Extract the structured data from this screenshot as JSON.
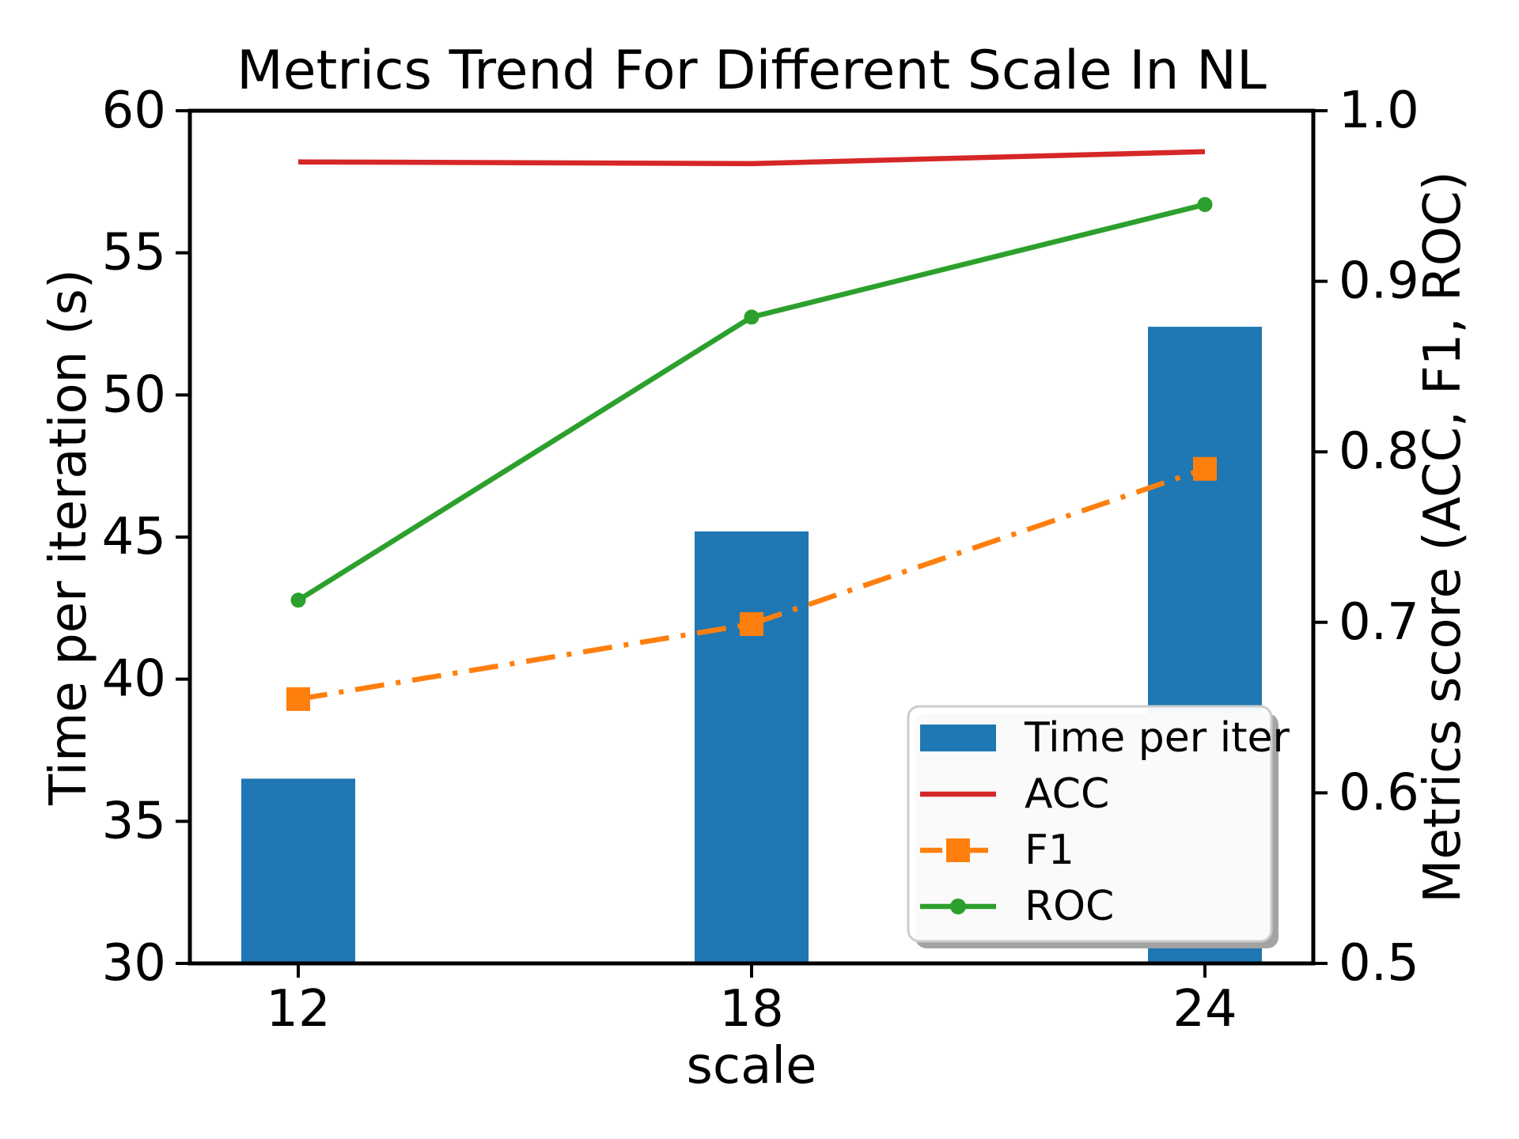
{
  "chart_data": {
    "type": "combo-bar-line",
    "title": "Metrics Trend For Different Scale In NL",
    "xlabel": "scale",
    "ylabel_left": "Time per iteration (s)",
    "ylabel_right": "Metrics score (ACC, F1, ROC)",
    "categories": [
      12,
      18,
      24
    ],
    "x_tick_labels": [
      "12",
      "18",
      "24"
    ],
    "ylim_left": [
      30,
      60
    ],
    "yticks_left": [
      "30",
      "35",
      "40",
      "45",
      "50",
      "55",
      "60"
    ],
    "ylim_right": [
      0.5,
      1.0
    ],
    "yticks_right": [
      "0.5",
      "0.6",
      "0.7",
      "0.8",
      "0.9",
      "1.0"
    ],
    "grid": false,
    "background_color": "#ffffff",
    "frame_color": "#000000",
    "series": [
      {
        "name": "Time per iter",
        "type": "bar",
        "axis": "left",
        "color": "#1f77b4",
        "linestyle": "none",
        "marker": "none",
        "values": [
          36.5,
          45.2,
          52.4
        ]
      },
      {
        "name": "ACC",
        "type": "line",
        "axis": "right",
        "color": "#d62728",
        "linestyle": "solid",
        "marker": "none",
        "values": [
          0.97,
          0.969,
          0.976
        ]
      },
      {
        "name": "F1",
        "type": "line",
        "axis": "right",
        "color": "#ff7f0e",
        "linestyle": "dashdot",
        "marker": "square",
        "values": [
          0.655,
          0.699,
          0.79
        ]
      },
      {
        "name": "ROC",
        "type": "line",
        "axis": "right",
        "color": "#2ca02c",
        "linestyle": "solid",
        "marker": "circle",
        "values": [
          0.713,
          0.879,
          0.945
        ]
      }
    ],
    "legend": {
      "position": "lower right",
      "entries": [
        "Time per iter",
        "ACC",
        "F1",
        "ROC"
      ],
      "border_color": "#cccccc",
      "fill_color": "#ffffff",
      "shadow_color": "#a3a3a3"
    }
  }
}
